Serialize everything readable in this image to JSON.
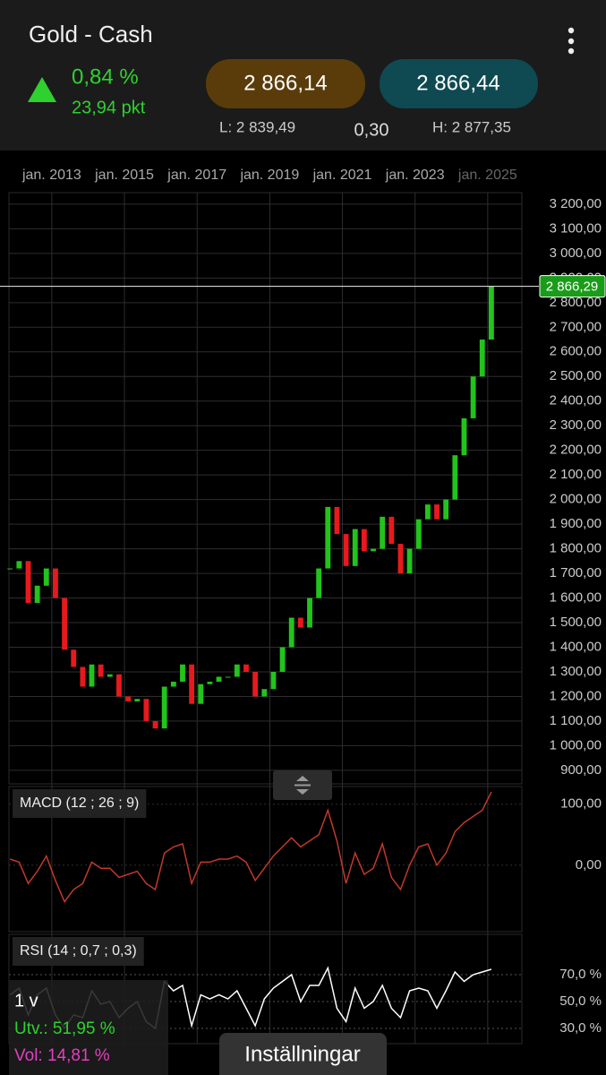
{
  "header": {
    "title": "Gold - Cash",
    "change_pct": "0,84 %",
    "change_pts": "23,94 pkt",
    "bid": "2 866,14",
    "ask": "2 866,44",
    "low": "L: 2 839,49",
    "spread": "0,30",
    "high": "H: 2 877,35"
  },
  "chart_data": [
    {
      "type": "candlestick",
      "x": [
        2011.85,
        2012.1,
        2012.35,
        2012.6,
        2012.85,
        2013.1,
        2013.35,
        2013.6,
        2013.85,
        2014.1,
        2014.35,
        2014.6,
        2014.85,
        2015.1,
        2015.35,
        2015.6,
        2015.85,
        2016.1,
        2016.35,
        2016.6,
        2016.85,
        2017.1,
        2017.35,
        2017.6,
        2017.85,
        2018.1,
        2018.35,
        2018.6,
        2018.85,
        2019.1,
        2019.35,
        2019.6,
        2019.85,
        2020.1,
        2020.35,
        2020.6,
        2020.85,
        2021.1,
        2021.35,
        2021.6,
        2021.85,
        2022.1,
        2022.35,
        2022.6,
        2022.85,
        2023.1,
        2023.35,
        2023.6,
        2023.85,
        2024.1,
        2024.35,
        2024.6,
        2024.85,
        2025.1
      ],
      "values": [
        1720,
        1750,
        1580,
        1650,
        1720,
        1600,
        1390,
        1320,
        1240,
        1330,
        1280,
        1290,
        1200,
        1180,
        1190,
        1100,
        1070,
        1240,
        1260,
        1330,
        1170,
        1250,
        1260,
        1280,
        1280,
        1330,
        1300,
        1200,
        1230,
        1300,
        1400,
        1520,
        1480,
        1600,
        1720,
        1970,
        1860,
        1730,
        1880,
        1790,
        1800,
        1930,
        1820,
        1700,
        1800,
        1920,
        1980,
        1920,
        2000,
        2180,
        2330,
        2500,
        2650,
        2866.29
      ],
      "xlim": [
        2011.82,
        2025.94
      ],
      "xticks": [
        {
          "value": 2013,
          "label": "jan. 2013"
        },
        {
          "value": 2015,
          "label": "jan. 2015"
        },
        {
          "value": 2017,
          "label": "jan. 2017"
        },
        {
          "value": 2019,
          "label": "jan. 2019"
        },
        {
          "value": 2021,
          "label": "jan. 2021"
        },
        {
          "value": 2023,
          "label": "jan. 2023"
        },
        {
          "value": 2025,
          "label": "jan. 2025"
        }
      ],
      "ylim": [
        845,
        3247
      ],
      "yticks": [
        {
          "value": 900,
          "label": "900,00"
        },
        {
          "value": 1000,
          "label": "1 000,00"
        },
        {
          "value": 1100,
          "label": "1 100,00"
        },
        {
          "value": 1200,
          "label": "1 200,00"
        },
        {
          "value": 1300,
          "label": "1 300,00"
        },
        {
          "value": 1400,
          "label": "1 400,00"
        },
        {
          "value": 1500,
          "label": "1 500,00"
        },
        {
          "value": 1600,
          "label": "1 600,00"
        },
        {
          "value": 1700,
          "label": "1 700,00"
        },
        {
          "value": 1800,
          "label": "1 800,00"
        },
        {
          "value": 1900,
          "label": "1 900,00"
        },
        {
          "value": 2000,
          "label": "2 000,00"
        },
        {
          "value": 2100,
          "label": "2 100,00"
        },
        {
          "value": 2200,
          "label": "2 200,00"
        },
        {
          "value": 2300,
          "label": "2 300,00"
        },
        {
          "value": 2400,
          "label": "2 400,00"
        },
        {
          "value": 2500,
          "label": "2 500,00"
        },
        {
          "value": 2600,
          "label": "2 600,00"
        },
        {
          "value": 2700,
          "label": "2 700,00"
        },
        {
          "value": 2800,
          "label": "2 800,00"
        },
        {
          "value": 2900,
          "label": "2 900,00"
        },
        {
          "value": 3000,
          "label": "3 000,00"
        },
        {
          "value": 3100,
          "label": "3 100,00"
        },
        {
          "value": 3200,
          "label": "3 200,00"
        }
      ],
      "grid": true,
      "up_color": "#22c41c",
      "down_color": "#e8191d",
      "last_price": {
        "value": 2866.29,
        "label": "2 866,29"
      }
    },
    {
      "type": "line",
      "title": "MACD (12 ; 26 ; 9)",
      "x": [
        2011.85,
        2012.1,
        2012.35,
        2012.6,
        2012.85,
        2013.1,
        2013.35,
        2013.6,
        2013.85,
        2014.1,
        2014.35,
        2014.6,
        2014.85,
        2015.1,
        2015.35,
        2015.6,
        2015.85,
        2016.1,
        2016.35,
        2016.6,
        2016.85,
        2017.1,
        2017.35,
        2017.6,
        2017.85,
        2018.1,
        2018.35,
        2018.6,
        2018.85,
        2019.1,
        2019.35,
        2019.6,
        2019.85,
        2020.1,
        2020.35,
        2020.6,
        2020.85,
        2021.1,
        2021.35,
        2021.6,
        2021.85,
        2022.1,
        2022.35,
        2022.6,
        2022.85,
        2023.1,
        2023.35,
        2023.6,
        2023.85,
        2024.1,
        2024.35,
        2024.6,
        2024.85,
        2025.1
      ],
      "values": [
        10,
        5,
        -30,
        -10,
        15,
        -25,
        -60,
        -40,
        -30,
        5,
        -5,
        -5,
        -20,
        -15,
        -10,
        -30,
        -40,
        20,
        30,
        35,
        -30,
        5,
        5,
        10,
        10,
        15,
        5,
        -25,
        -5,
        15,
        30,
        45,
        30,
        40,
        50,
        90,
        40,
        -30,
        20,
        -15,
        -5,
        35,
        -20,
        -40,
        0,
        30,
        35,
        0,
        20,
        55,
        70,
        80,
        90,
        120
      ],
      "color": "#c0392b",
      "xlim": [
        2011.82,
        2025.94
      ],
      "ylim": [
        -109,
        129
      ],
      "yticks": [
        {
          "value": 0,
          "label": "0,00"
        },
        {
          "value": 100,
          "label": "100,00"
        }
      ]
    },
    {
      "type": "line",
      "title": "RSI (14 ; 0,7 ; 0,3)",
      "x": [
        2011.85,
        2012.1,
        2012.35,
        2012.6,
        2012.85,
        2013.1,
        2013.35,
        2013.6,
        2013.85,
        2014.1,
        2014.35,
        2014.6,
        2014.85,
        2015.1,
        2015.35,
        2015.6,
        2015.85,
        2016.1,
        2016.35,
        2016.6,
        2016.85,
        2017.1,
        2017.35,
        2017.6,
        2017.85,
        2018.1,
        2018.35,
        2018.6,
        2018.85,
        2019.1,
        2019.35,
        2019.6,
        2019.85,
        2020.1,
        2020.35,
        2020.6,
        2020.85,
        2021.1,
        2021.35,
        2021.6,
        2021.85,
        2022.1,
        2022.35,
        2022.6,
        2022.85,
        2023.1,
        2023.35,
        2023.6,
        2023.85,
        2024.1,
        2024.35,
        2024.6,
        2024.85,
        2025.1
      ],
      "values": [
        55,
        60,
        40,
        55,
        60,
        40,
        30,
        40,
        38,
        58,
        48,
        50,
        38,
        45,
        50,
        35,
        30,
        65,
        58,
        62,
        32,
        55,
        52,
        55,
        52,
        58,
        45,
        32,
        52,
        60,
        65,
        70,
        50,
        62,
        62,
        75,
        45,
        35,
        60,
        45,
        50,
        62,
        45,
        38,
        58,
        60,
        58,
        45,
        58,
        72,
        65,
        70,
        72,
        74
      ],
      "color": "#ffffff",
      "xlim": [
        2011.82,
        2025.94
      ],
      "ylim": [
        18.7,
        100
      ],
      "yticks": [
        {
          "value": 30,
          "label": "30,0 %"
        },
        {
          "value": 50,
          "label": "50,0 %"
        },
        {
          "value": 70,
          "label": "70,0 %"
        }
      ]
    }
  ],
  "overlay": {
    "period": "1 v",
    "return": "Utv.: 51,95 %",
    "volatility": "Vol: 14,81 %",
    "button": "Inställningar"
  }
}
